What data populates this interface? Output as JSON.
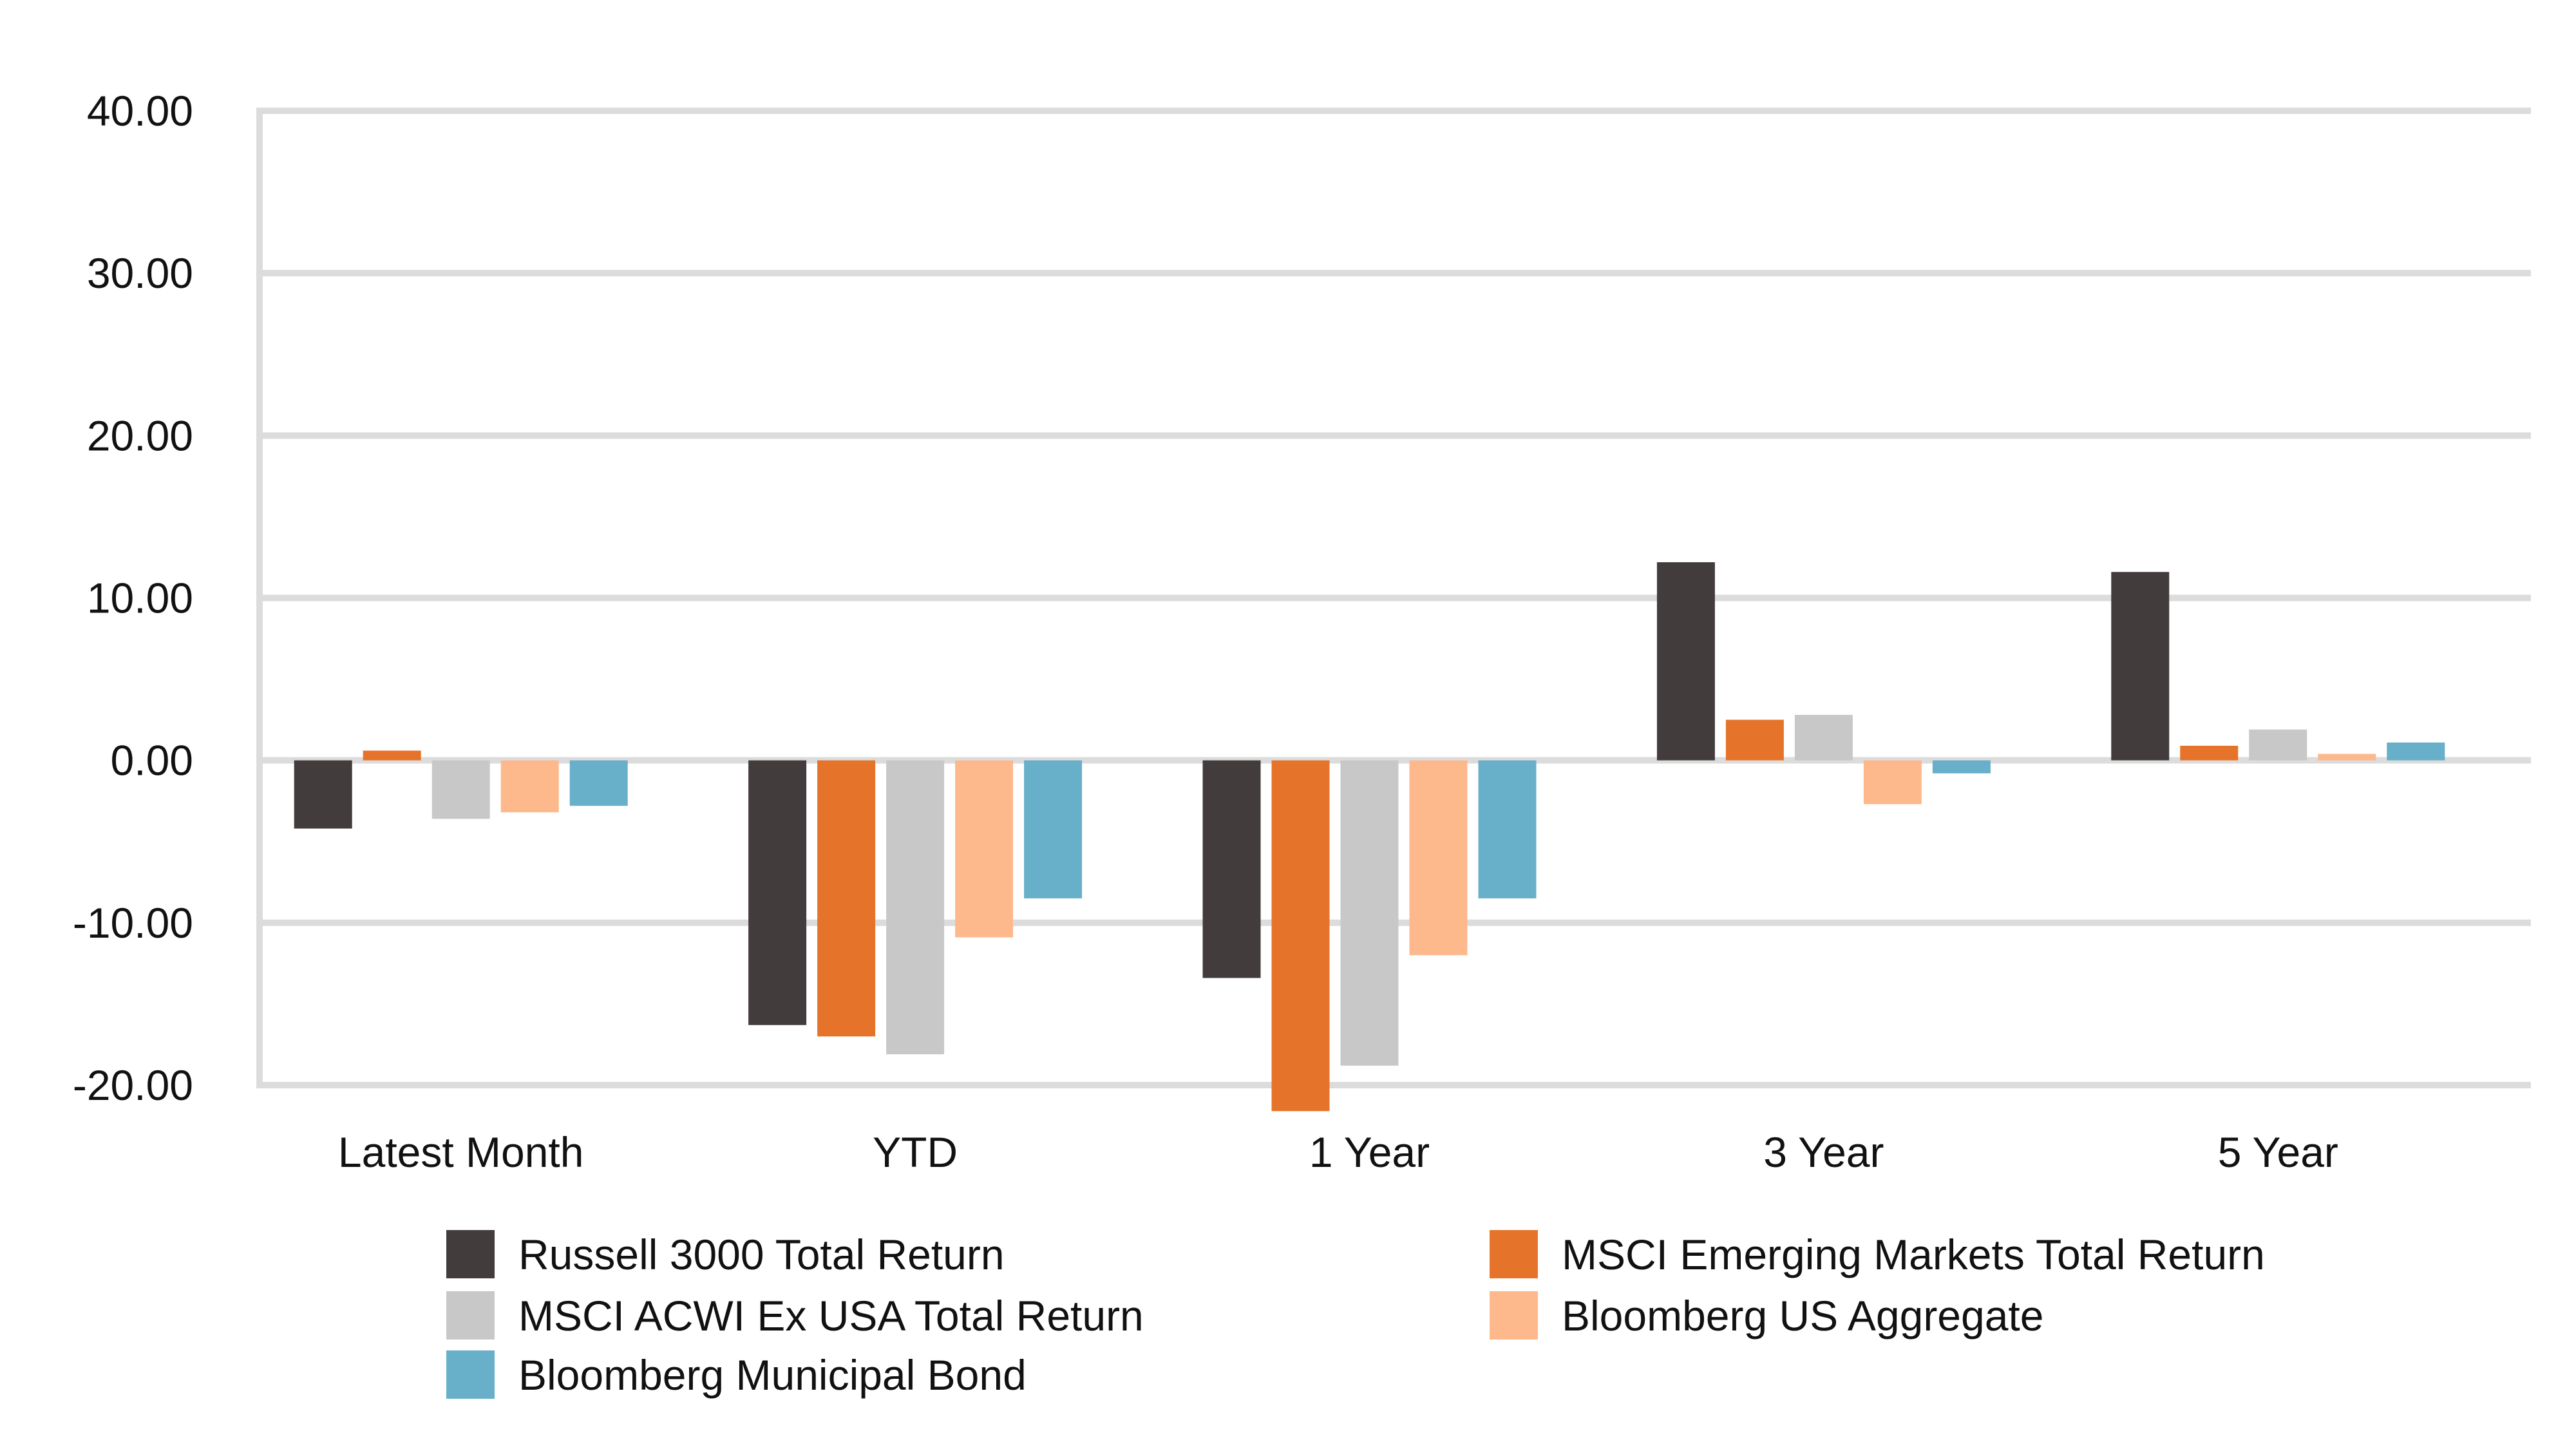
{
  "chart_data": {
    "type": "bar",
    "title": "",
    "xlabel": "",
    "ylabel": "",
    "ylim": [
      -20,
      40
    ],
    "yticks": [
      40,
      30,
      20,
      10,
      0,
      -10,
      -20
    ],
    "ytick_labels": [
      "40.00",
      "30.00",
      "20.00",
      "10.00",
      "0.00",
      "-10.00",
      "-20.00"
    ],
    "grid": true,
    "legend_position": "bottom",
    "categories": [
      "Latest Month",
      "YTD",
      "1 Year",
      "3 Year",
      "5 Year"
    ],
    "series": [
      {
        "name": "Russell 3000 Total Return",
        "color": "#433c3c",
        "values": [
          -4.2,
          -16.3,
          -13.4,
          12.2,
          11.6
        ]
      },
      {
        "name": "MSCI Emerging Markets Total Return",
        "color": "#e5742a",
        "values": [
          0.6,
          -17.0,
          -21.6,
          2.5,
          0.9
        ]
      },
      {
        "name": "MSCI ACWI Ex USA Total Return",
        "color": "#c8c8c9",
        "values": [
          -3.6,
          -18.1,
          -18.8,
          2.8,
          1.9
        ]
      },
      {
        "name": "Bloomberg US Aggregate",
        "color": "#fdb98c",
        "values": [
          -3.2,
          -10.9,
          -12.0,
          -2.7,
          0.4
        ]
      },
      {
        "name": "Bloomberg Municipal Bond",
        "color": "#68afca",
        "values": [
          -2.8,
          -8.5,
          -8.5,
          -0.8,
          1.1
        ]
      }
    ]
  }
}
